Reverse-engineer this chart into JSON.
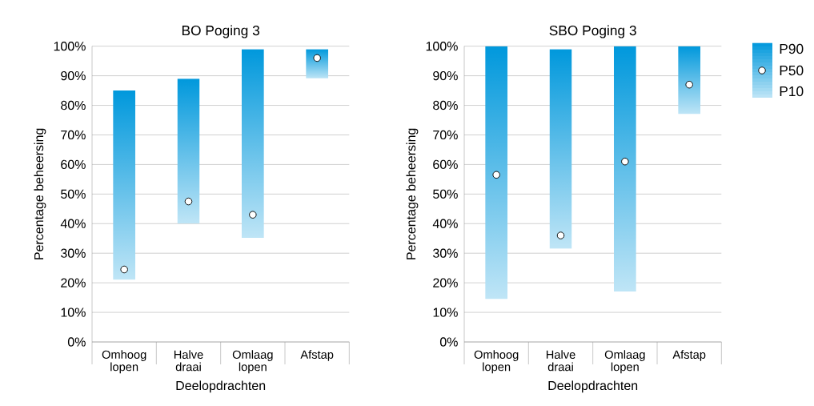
{
  "chart_data": [
    {
      "type": "bar",
      "title": "BO Poging 3",
      "xlabel": "Deelopdrachten",
      "ylabel": "Percentage beheersing",
      "categories": [
        "Omhoog lopen",
        "Halve draai",
        "Omlaag lopen",
        "Afstap"
      ],
      "series": [
        {
          "color": "#0098dc",
          "base": [
            21,
            40,
            35,
            89
          ],
          "values": [
            64,
            49,
            64,
            10
          ]
        },
        {
          "type": "scatter",
          "color": "#ffffff",
          "marker": "circle",
          "x": [
            "Omhoog lopen",
            "Halve draai",
            "Omlaag lopen",
            "Afstap"
          ],
          "values": [
            24.5,
            47.5,
            43,
            96
          ]
        }
      ],
      "ylim": [
        0,
        100
      ],
      "yticks": [
        {
          "value": 0,
          "label": "0%"
        },
        {
          "value": 10,
          "label": "10%"
        },
        {
          "value": 20,
          "label": "20%"
        },
        {
          "value": 30,
          "label": "30%"
        },
        {
          "value": 40,
          "label": "40%"
        },
        {
          "value": 50,
          "label": "50%"
        },
        {
          "value": 60,
          "label": "60%"
        },
        {
          "value": 70,
          "label": "70%"
        },
        {
          "value": 80,
          "label": "80%"
        },
        {
          "value": 90,
          "label": "90%"
        },
        {
          "value": 100,
          "label": "100%"
        }
      ],
      "grid": "y"
    },
    {
      "type": "bar",
      "title": "SBO Poging 3",
      "xlabel": "Deelopdrachten",
      "ylabel": "Percentage beheersing",
      "categories": [
        "Omhoog lopen",
        "Halve draai",
        "Omlaag lopen",
        "Afstap"
      ],
      "series": [
        {
          "color": "#0098dc",
          "base": [
            14.5,
            31.5,
            17,
            77
          ],
          "values": [
            85.5,
            67.5,
            83,
            23
          ]
        },
        {
          "type": "scatter",
          "name": "P50",
          "color": "#ffffff",
          "marker": "circle",
          "x": [
            "Omhoog lopen",
            "Halve draai",
            "Omlaag lopen",
            "Afstap"
          ],
          "values": [
            56.5,
            36,
            61,
            87
          ]
        }
      ],
      "ylim": [
        0,
        100
      ],
      "yticks": [
        {
          "value": 0,
          "label": "0%"
        },
        {
          "value": 10,
          "label": "10%"
        },
        {
          "value": 20,
          "label": "20%"
        },
        {
          "value": 30,
          "label": "30%"
        },
        {
          "value": 40,
          "label": "40%"
        },
        {
          "value": 50,
          "label": "50%"
        },
        {
          "value": 60,
          "label": "60%"
        },
        {
          "value": 70,
          "label": "70%"
        },
        {
          "value": 80,
          "label": "80%"
        },
        {
          "value": 90,
          "label": "90%"
        },
        {
          "value": 100,
          "label": "100%"
        }
      ],
      "grid": "y",
      "legend": "right",
      "annotations": [
        "P90",
        "P10"
      ]
    }
  ]
}
